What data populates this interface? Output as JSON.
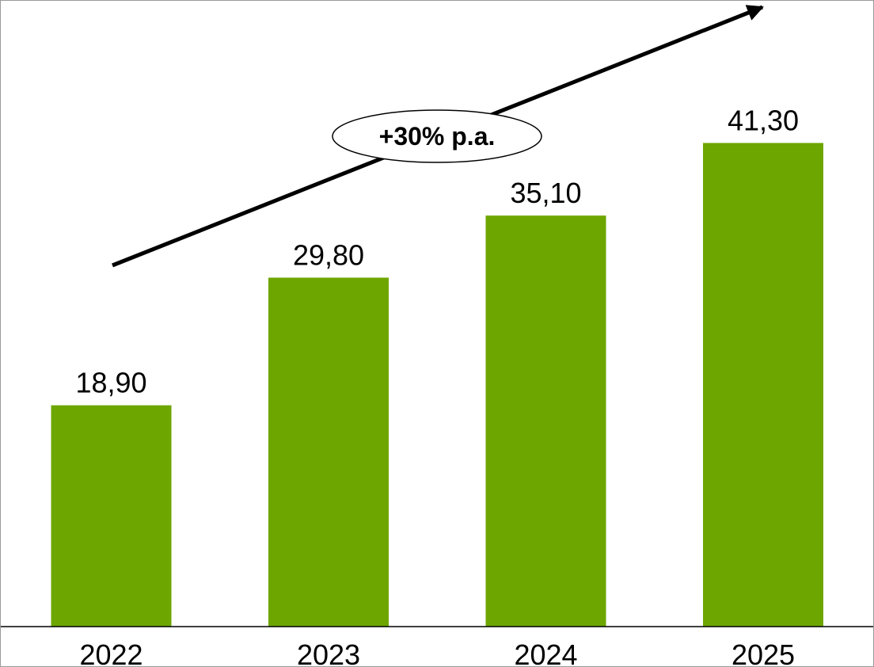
{
  "colors": {
    "bar": "#6ea600",
    "arrow": "#000000",
    "axis": "#000000"
  },
  "chart_data": {
    "type": "bar",
    "categories": [
      "2022",
      "2023",
      "2024",
      "2025"
    ],
    "values": [
      18.9,
      29.8,
      35.1,
      41.3
    ],
    "value_labels": [
      "18,90",
      "29,80",
      "35,10",
      "41,30"
    ],
    "title": "",
    "xlabel": "",
    "ylabel": "",
    "ylim": [
      0,
      46
    ],
    "grid": false,
    "legend": "none",
    "annotations": [
      {
        "type": "growth-arrow",
        "text": "+30% p.a."
      }
    ]
  }
}
